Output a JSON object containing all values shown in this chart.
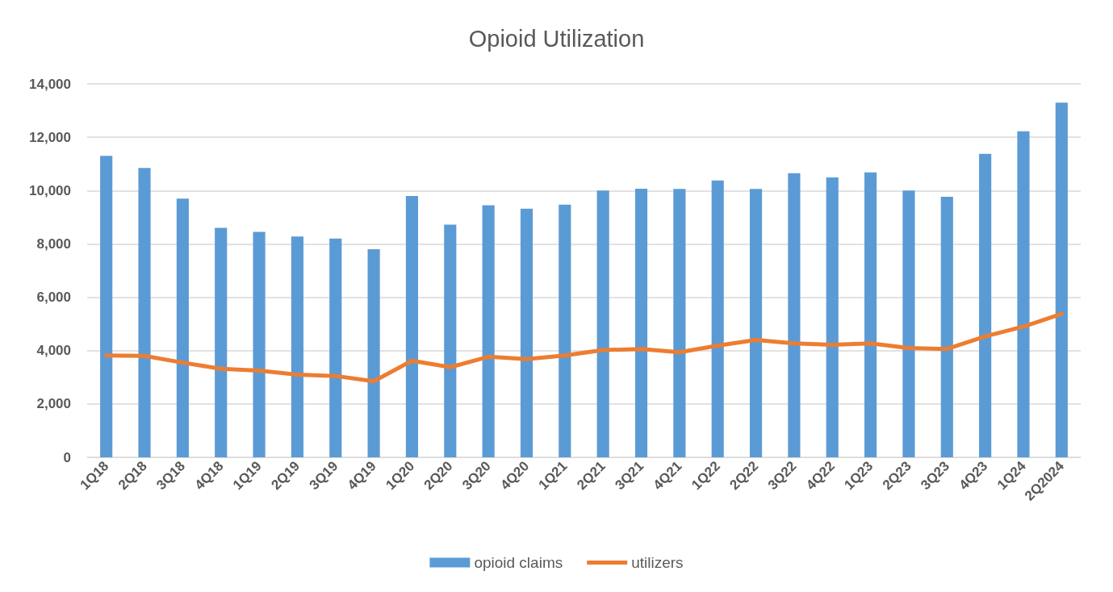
{
  "chart_data": {
    "type": "bar",
    "title": "Opioid Utilization",
    "categories": [
      "1Q18",
      "2Q18",
      "3Q18",
      "4Q18",
      "1Q19",
      "2Q19",
      "3Q19",
      "4Q19",
      "1Q20",
      "2Q20",
      "3Q20",
      "4Q20",
      "1Q21",
      "2Q21",
      "3Q21",
      "4Q21",
      "1Q22",
      "2Q22",
      "3Q22",
      "4Q22",
      "1Q23",
      "2Q23",
      "3Q23",
      "4Q23",
      "1Q24",
      "2Q2024"
    ],
    "series": [
      {
        "name": "opioid claims",
        "color": "#5b9bd5",
        "values": [
          11300,
          10850,
          9700,
          8600,
          8450,
          8280,
          8200,
          7800,
          9800,
          8720,
          9450,
          9320,
          9470,
          10000,
          10070,
          10060,
          10380,
          10060,
          10650,
          10490,
          10680,
          10000,
          9770,
          11380,
          12220,
          13300
        ]
      },
      {
        "name": "utilizers",
        "type": "line",
        "color": "#ed7d31",
        "values": [
          3820,
          3800,
          3550,
          3320,
          3250,
          3100,
          3050,
          2850,
          3620,
          3380,
          3770,
          3680,
          3820,
          4020,
          4060,
          3940,
          4190,
          4400,
          4270,
          4220,
          4270,
          4100,
          4060,
          4530,
          4900,
          5380
        ]
      }
    ],
    "ylim": [
      0,
      14000
    ],
    "yticks": [
      {
        "value": 0,
        "label": "0"
      },
      {
        "value": 2000,
        "label": "2,000"
      },
      {
        "value": 4000,
        "label": "4,000"
      },
      {
        "value": 6000,
        "label": "6,000"
      },
      {
        "value": 8000,
        "label": "8,000"
      },
      {
        "value": 10000,
        "label": "10,000"
      },
      {
        "value": 12000,
        "label": "12,000"
      },
      {
        "value": 14000,
        "label": "14,000"
      }
    ],
    "grid": "y",
    "legend": "bottom",
    "marker": "none",
    "line_style": "solid"
  }
}
